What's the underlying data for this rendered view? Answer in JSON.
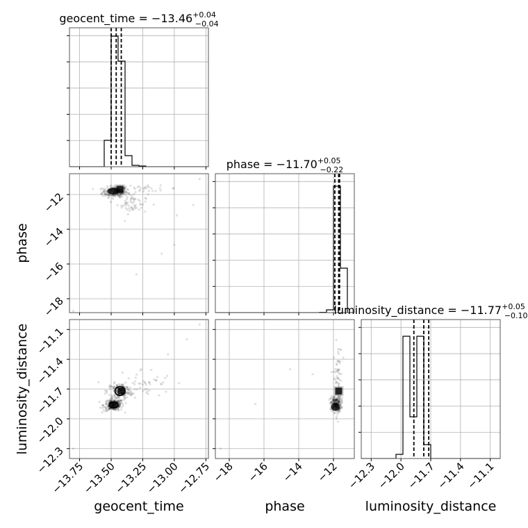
{
  "chart_data": {
    "type": "corner",
    "parameters": [
      "geocent_time",
      "phase",
      "luminosity_distance"
    ],
    "titles": [
      {
        "base": "geocent_time = −13.46",
        "plus": "+0.04",
        "minus": "−0.04"
      },
      {
        "base": "phase = −11.70",
        "plus": "+0.05",
        "minus": "−0.22"
      },
      {
        "base": "luminosity_distance = −11.77",
        "plus": "+0.05",
        "minus": "−0.10"
      }
    ],
    "ranges": [
      [
        -13.83,
        -12.73
      ],
      [
        -18.8,
        -10.8
      ],
      [
        -12.4,
        -11.0
      ]
    ],
    "ticks": [
      {
        "values": [
          -13.75,
          -13.5,
          -13.25,
          -13.0,
          -12.75
        ],
        "labels": [
          "−13.75",
          "−13.50",
          "−13.25",
          "−13.00",
          "−12.75"
        ]
      },
      {
        "values": [
          -18,
          -16,
          -14,
          -12
        ],
        "labels": [
          "−18",
          "−16",
          "−14",
          "−12"
        ]
      },
      {
        "values": [
          -12.3,
          -12.0,
          -11.7,
          -11.4,
          -11.1
        ],
        "labels": [
          "−12.3",
          "−12.0",
          "−11.7",
          "−11.4",
          "−11.1"
        ]
      }
    ],
    "quantiles": [
      [
        -13.5,
        -13.46,
        -13.42
      ],
      [
        -11.92,
        -11.7,
        -11.65
      ],
      [
        -11.87,
        -11.77,
        -11.72
      ]
    ],
    "histograms": [
      {
        "bin_edges": [
          -13.83,
          -13.775,
          -13.72,
          -13.665,
          -13.61,
          -13.555,
          -13.5,
          -13.445,
          -13.39,
          -13.335,
          -13.28,
          -13.225,
          -13.17,
          -13.115,
          -13.06,
          -13.005,
          -12.95,
          -12.895,
          -12.84,
          -12.785,
          -12.73
        ],
        "counts": [
          0,
          0,
          0,
          0,
          0,
          0.19,
          0.94,
          0.76,
          0.08,
          0.01,
          0.005,
          0,
          0,
          0,
          0,
          0,
          0,
          0,
          0,
          0
        ]
      },
      {
        "bin_edges": [
          -18.8,
          -18.4,
          -18.0,
          -17.6,
          -17.2,
          -16.8,
          -16.4,
          -16.0,
          -15.6,
          -15.2,
          -14.8,
          -14.4,
          -14.0,
          -13.6,
          -13.2,
          -12.8,
          -12.4,
          -12.0,
          -11.6,
          -11.2,
          -10.8
        ],
        "counts": [
          0,
          0,
          0,
          0,
          0,
          0,
          0,
          0,
          0,
          0,
          0,
          0,
          0,
          0,
          0,
          0.002,
          0.02,
          0.91,
          0.32,
          0,
          0
        ]
      },
      {
        "bin_edges": [
          -12.4,
          -12.33,
          -12.26,
          -12.19,
          -12.12,
          -12.05,
          -11.98,
          -11.91,
          -11.84,
          -11.77,
          -11.7,
          -11.63,
          -11.56,
          -11.49,
          -11.42,
          -11.35,
          -11.28,
          -11.21,
          -11.14,
          -11.07,
          -11.0
        ],
        "counts": [
          0,
          0,
          0,
          0,
          0,
          0.03,
          0.88,
          0.3,
          0.88,
          0.1,
          0,
          0,
          0,
          0,
          0,
          0,
          0,
          0,
          0,
          0
        ]
      }
    ],
    "scatter_clusters": [
      {
        "pair": [
          0,
          1
        ],
        "center": [
          -13.47,
          -11.85
        ],
        "spread": [
          0.05,
          0.15
        ],
        "n": 220
      },
      {
        "pair": [
          0,
          1
        ],
        "center": [
          -13.33,
          -12.5
        ],
        "spread": [
          0.06,
          0.3
        ],
        "n": 60
      },
      {
        "pair": [
          0,
          1
        ],
        "center": [
          -13.25,
          -11.65
        ],
        "spread": [
          0.15,
          0.08
        ],
        "n": 30
      },
      {
        "pair": [
          0,
          2
        ],
        "center": [
          -13.48,
          -11.86
        ],
        "spread": [
          0.04,
          0.03
        ],
        "n": 200
      },
      {
        "pair": [
          0,
          2
        ],
        "center": [
          -13.43,
          -11.72
        ],
        "spread": [
          0.05,
          0.04
        ],
        "n": 150
      },
      {
        "pair": [
          0,
          2
        ],
        "center": [
          -13.25,
          -11.65
        ],
        "spread": [
          0.12,
          0.08
        ],
        "n": 50
      },
      {
        "pair": [
          1,
          2
        ],
        "center": [
          -11.85,
          -11.85
        ],
        "spread": [
          0.15,
          0.04
        ],
        "n": 220
      },
      {
        "pair": [
          1,
          2
        ],
        "center": [
          -11.75,
          -11.6
        ],
        "spread": [
          0.12,
          0.18
        ],
        "n": 60
      }
    ],
    "scatter_outliers": [
      {
        "pair": [
          0,
          1
        ],
        "points": [
          [
            -13.8,
            -18.7
          ],
          [
            -13.0,
            -14.9
          ],
          [
            -13.1,
            -15.4
          ],
          [
            -13.3,
            -16.6
          ],
          [
            -12.98,
            -13.2
          ],
          [
            -12.8,
            -11.1
          ],
          [
            -12.85,
            -12.6
          ]
        ]
      },
      {
        "pair": [
          0,
          2
        ],
        "points": [
          [
            -13.8,
            -12.3
          ],
          [
            -12.8,
            -11.05
          ],
          [
            -12.9,
            -11.2
          ],
          [
            -13.05,
            -11.35
          ]
        ]
      },
      {
        "pair": [
          1,
          2
        ],
        "points": [
          [
            -16.5,
            -11.85
          ],
          [
            -13.2,
            -11.55
          ],
          [
            -18.5,
            -12.3
          ],
          [
            -14.5,
            -11.5
          ]
        ]
      }
    ],
    "contours": [
      {
        "pair": [
          0,
          2
        ],
        "center": [
          -13.48,
          -11.86
        ],
        "radii": [
          0.035,
          0.03
        ]
      },
      {
        "pair": [
          0,
          2
        ],
        "center": [
          -13.43,
          -11.72
        ],
        "radii": [
          0.04,
          0.045
        ]
      }
    ],
    "markers": [
      {
        "pair": [
          0,
          1
        ],
        "point": [
          -13.43,
          -11.7
        ]
      },
      {
        "pair": [
          0,
          2
        ],
        "point": [
          -13.48,
          -11.86
        ]
      },
      {
        "pair": [
          0,
          2
        ],
        "point": [
          -13.42,
          -11.72
        ]
      },
      {
        "pair": [
          1,
          2
        ],
        "point": [
          -11.7,
          -11.72
        ]
      }
    ],
    "density_cores": [
      {
        "pair": [
          0,
          1
        ],
        "center": [
          -13.48,
          -11.8
        ],
        "radii": [
          0.05,
          0.2
        ]
      },
      {
        "pair": [
          1,
          2
        ],
        "center": [
          -11.9,
          -11.88
        ],
        "radii": [
          0.25,
          0.04
        ]
      }
    ],
    "grid": true
  }
}
